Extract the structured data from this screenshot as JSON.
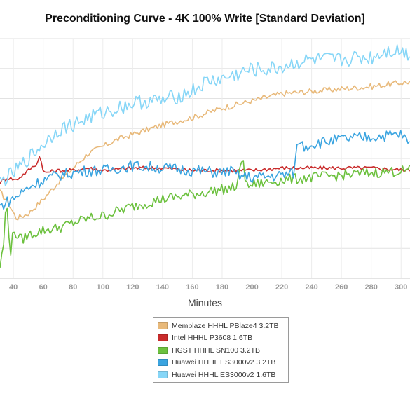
{
  "chart_data": {
    "type": "line",
    "title": "Preconditioning Curve - 4K 100% Write [Standard Deviation]",
    "xlabel": "Minutes",
    "ylabel": "",
    "xlim": [
      31,
      306
    ],
    "ylim": [
      0,
      100
    ],
    "x_ticks": [
      40,
      60,
      80,
      100,
      120,
      140,
      160,
      180,
      200,
      220,
      240,
      260,
      280,
      300
    ],
    "grid": true,
    "legend_position": "bottom-center",
    "series": [
      {
        "name": "Memblaze HHHL PBlaze4 3.2TB",
        "color": "#e8b97a",
        "points": [
          [
            31,
            36
          ],
          [
            36,
            32
          ],
          [
            42,
            25
          ],
          [
            50,
            27
          ],
          [
            60,
            33
          ],
          [
            70,
            40
          ],
          [
            80,
            46
          ],
          [
            90,
            52
          ],
          [
            100,
            55
          ],
          [
            110,
            58
          ],
          [
            120,
            60
          ],
          [
            140,
            64
          ],
          [
            160,
            67
          ],
          [
            180,
            71
          ],
          [
            200,
            74
          ],
          [
            220,
            77
          ],
          [
            240,
            78
          ],
          [
            260,
            79
          ],
          [
            280,
            80
          ],
          [
            306,
            82
          ]
        ]
      },
      {
        "name": "Intel HHHL P3608 1.6TB",
        "color": "#c92b2b",
        "points": [
          [
            31,
            40
          ],
          [
            36,
            42
          ],
          [
            42,
            41
          ],
          [
            50,
            45
          ],
          [
            56,
            48
          ],
          [
            58,
            52
          ],
          [
            60,
            44
          ],
          [
            70,
            45
          ],
          [
            80,
            45
          ],
          [
            90,
            46
          ],
          [
            100,
            45
          ],
          [
            120,
            46
          ],
          [
            140,
            46
          ],
          [
            160,
            45
          ],
          [
            180,
            45
          ],
          [
            200,
            45
          ],
          [
            220,
            46
          ],
          [
            240,
            46
          ],
          [
            260,
            46
          ],
          [
            280,
            46
          ],
          [
            306,
            45
          ]
        ]
      },
      {
        "name": "HGST HHHL SN100 3.2TB",
        "color": "#6cc13e",
        "points": [
          [
            31,
            5
          ],
          [
            33,
            12
          ],
          [
            34,
            18
          ],
          [
            35,
            32
          ],
          [
            36,
            28
          ],
          [
            38,
            10
          ],
          [
            40,
            20
          ],
          [
            45,
            16
          ],
          [
            50,
            18
          ],
          [
            60,
            20
          ],
          [
            70,
            21
          ],
          [
            80,
            23
          ],
          [
            90,
            25
          ],
          [
            100,
            26
          ],
          [
            110,
            28
          ],
          [
            120,
            30
          ],
          [
            140,
            33
          ],
          [
            160,
            35
          ],
          [
            180,
            37
          ],
          [
            190,
            38
          ],
          [
            194,
            52
          ],
          [
            196,
            38
          ],
          [
            200,
            39
          ],
          [
            220,
            41
          ],
          [
            240,
            42
          ],
          [
            260,
            43
          ],
          [
            280,
            44
          ],
          [
            306,
            45
          ]
        ]
      },
      {
        "name": "Huawei HHHL ES3000v2 3.2TB",
        "color": "#3aa4e0",
        "points": [
          [
            31,
            30
          ],
          [
            36,
            32
          ],
          [
            42,
            34
          ],
          [
            50,
            38
          ],
          [
            60,
            41
          ],
          [
            70,
            43
          ],
          [
            80,
            44
          ],
          [
            90,
            45
          ],
          [
            100,
            45
          ],
          [
            110,
            46
          ],
          [
            120,
            47
          ],
          [
            140,
            46
          ],
          [
            160,
            45
          ],
          [
            180,
            44
          ],
          [
            185,
            45
          ],
          [
            190,
            43
          ],
          [
            200,
            42
          ],
          [
            220,
            43
          ],
          [
            228,
            44
          ],
          [
            231,
            58
          ],
          [
            235,
            55
          ],
          [
            240,
            56
          ],
          [
            260,
            58
          ],
          [
            280,
            59
          ],
          [
            300,
            60
          ],
          [
            306,
            56
          ]
        ]
      },
      {
        "name": "Huawei HHHL ES3000v2 1.6TB",
        "color": "#86d6f7",
        "points": [
          [
            31,
            40
          ],
          [
            36,
            42
          ],
          [
            42,
            45
          ],
          [
            50,
            50
          ],
          [
            60,
            56
          ],
          [
            70,
            62
          ],
          [
            80,
            64
          ],
          [
            90,
            67
          ],
          [
            100,
            69
          ],
          [
            110,
            71
          ],
          [
            120,
            73
          ],
          [
            130,
            74
          ],
          [
            140,
            74
          ],
          [
            150,
            76
          ],
          [
            160,
            78
          ],
          [
            170,
            82
          ],
          [
            180,
            83
          ],
          [
            190,
            85
          ],
          [
            200,
            87
          ],
          [
            210,
            87
          ],
          [
            220,
            88
          ],
          [
            230,
            90
          ],
          [
            240,
            91
          ],
          [
            250,
            91
          ],
          [
            260,
            91
          ],
          [
            270,
            92
          ],
          [
            280,
            92
          ],
          [
            290,
            95
          ],
          [
            300,
            95
          ],
          [
            306,
            93
          ]
        ]
      }
    ]
  }
}
